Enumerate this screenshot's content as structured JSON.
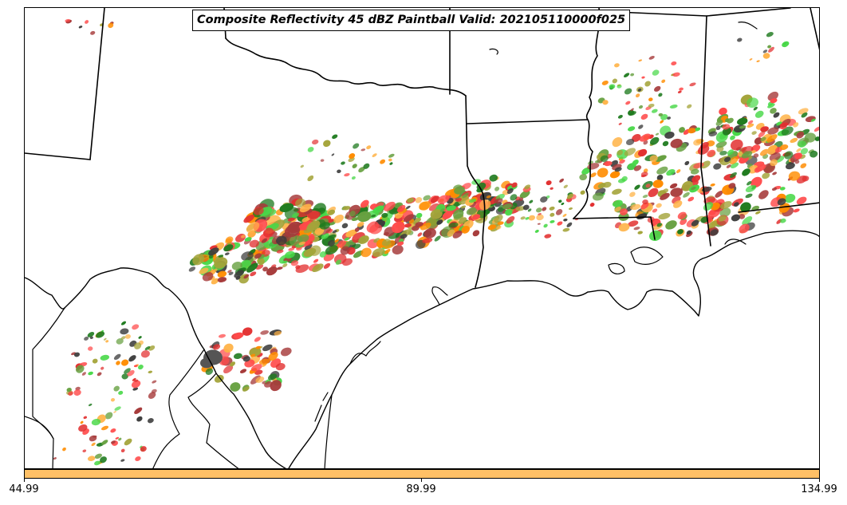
{
  "title": "Composite Reflectivity 45 dBZ Paintball Valid: 202105110000f025",
  "colorbar": {
    "color": "#ffc066",
    "ticks": [
      "44.99",
      "89.99",
      "134.99"
    ]
  },
  "member_colors": [
    "#ff4a4a",
    "#ff8c00",
    "#ffb347",
    "#48d848",
    "#a4a43a",
    "#1e7a1e",
    "#a63a3a",
    "#3c3c3c",
    "#e23030",
    "#66a040"
  ],
  "map_features": [
    "state-borders",
    "coastline",
    "international-border",
    "reflectivity-paintballs"
  ]
}
